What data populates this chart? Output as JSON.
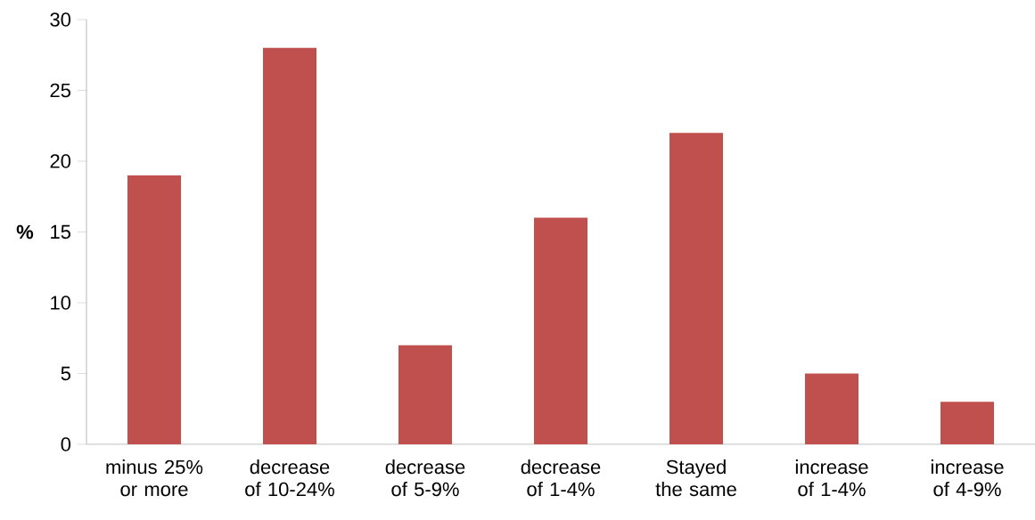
{
  "chart_data": {
    "type": "bar",
    "ylabel": "%",
    "categories": [
      "minus 25% or more",
      "decrease of 10-24%",
      "decrease of 5-9%",
      "decrease of 1-4%",
      "Stayed the same",
      "increase of 1-4%",
      "increase of 4-9%"
    ],
    "values": [
      19,
      28,
      7,
      16,
      22,
      5,
      3
    ],
    "color": "#c0504d",
    "ylim": [
      0,
      30
    ],
    "yticks": [
      0,
      5,
      10,
      15,
      20,
      25,
      30
    ],
    "grid": false
  }
}
